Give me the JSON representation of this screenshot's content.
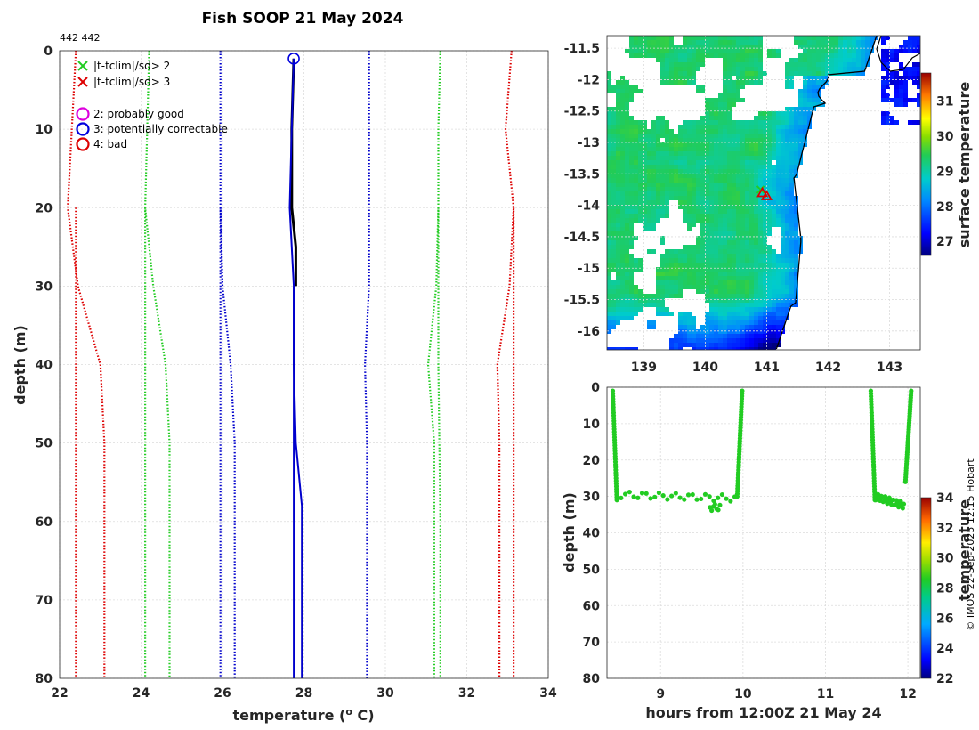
{
  "figure": {
    "title": "Fish SOOP 21 May 2024",
    "corner_label": "442 442",
    "copyright": "© IMOS 22-Sep-2025 12:15 Hobart"
  },
  "chart_data": [
    {
      "id": "profile",
      "type": "line",
      "xlabel": "temperature (",
      "xlabel_sup": "o",
      "xlabel_suffix": " C)",
      "ylabel": "depth (m)",
      "xlim": [
        22,
        34
      ],
      "ylim": [
        80,
        0
      ],
      "xticks": [
        22,
        24,
        26,
        28,
        30,
        32,
        34
      ],
      "yticks": [
        0,
        10,
        20,
        30,
        40,
        50,
        60,
        70,
        80
      ],
      "grid": true,
      "legend": {
        "placement": "top-left",
        "entries": [
          {
            "marker": "x",
            "color": "#22cc22",
            "label": "|t-tclim|/sd> 2"
          },
          {
            "marker": "x",
            "color": "#dd0000",
            "label": "|t-tclim|/sd> 3"
          },
          {
            "marker": "o",
            "color": "#dd00dd",
            "label": "2: probably good"
          },
          {
            "marker": "o",
            "color": "#0000dd",
            "label": "3: potentially correctable"
          },
          {
            "marker": "o",
            "color": "#dd0000",
            "label": "4: bad"
          }
        ]
      },
      "series": [
        {
          "name": "clim -3sd",
          "color": "#dd0000",
          "style": "dotted",
          "points": [
            [
              22.4,
              0
            ],
            [
              22.3,
              10
            ],
            [
              22.2,
              20
            ],
            [
              22.45,
              30
            ],
            [
              23.0,
              40
            ],
            [
              23.1,
              50
            ],
            [
              23.1,
              60
            ],
            [
              23.1,
              70
            ],
            [
              23.1,
              80
            ]
          ]
        },
        {
          "name": "clim -3sd (deep)",
          "color": "#dd0000",
          "style": "dotted",
          "points": [
            [
              22.4,
              20
            ],
            [
              22.4,
              40
            ],
            [
              22.4,
              60
            ],
            [
              22.4,
              80
            ]
          ]
        },
        {
          "name": "clim -2sd",
          "color": "#22cc22",
          "style": "dotted",
          "points": [
            [
              24.2,
              0
            ],
            [
              24.15,
              10
            ],
            [
              24.1,
              20
            ],
            [
              24.3,
              30
            ],
            [
              24.6,
              40
            ],
            [
              24.7,
              50
            ],
            [
              24.7,
              60
            ],
            [
              24.7,
              70
            ],
            [
              24.7,
              80
            ]
          ]
        },
        {
          "name": "clim -2sd (deep)",
          "color": "#22cc22",
          "style": "dotted",
          "points": [
            [
              24.1,
              20
            ],
            [
              24.1,
              40
            ],
            [
              24.1,
              60
            ],
            [
              24.1,
              80
            ]
          ]
        },
        {
          "name": "clim -1sd",
          "color": "#0000cc",
          "style": "dotted",
          "points": [
            [
              25.95,
              0
            ],
            [
              25.95,
              10
            ],
            [
              25.95,
              20
            ],
            [
              26.0,
              30
            ],
            [
              26.2,
              40
            ],
            [
              26.3,
              50
            ],
            [
              26.3,
              60
            ],
            [
              26.3,
              70
            ],
            [
              26.3,
              80
            ]
          ]
        },
        {
          "name": "clim -1sd (deep)",
          "color": "#0000cc",
          "style": "dotted",
          "points": [
            [
              25.95,
              20
            ],
            [
              25.95,
              40
            ],
            [
              25.95,
              60
            ],
            [
              25.95,
              80
            ]
          ]
        },
        {
          "name": "clim +1sd",
          "color": "#0000cc",
          "style": "dotted",
          "points": [
            [
              29.6,
              0
            ],
            [
              29.6,
              10
            ],
            [
              29.6,
              20
            ],
            [
              29.6,
              30
            ],
            [
              29.5,
              40
            ],
            [
              29.55,
              50
            ],
            [
              29.55,
              60
            ],
            [
              29.55,
              70
            ],
            [
              29.55,
              80
            ]
          ]
        },
        {
          "name": "clim +2sd",
          "color": "#22cc22",
          "style": "dotted",
          "points": [
            [
              31.35,
              0
            ],
            [
              31.3,
              10
            ],
            [
              31.3,
              20
            ],
            [
              31.25,
              30
            ],
            [
              31.05,
              40
            ],
            [
              31.2,
              50
            ],
            [
              31.2,
              60
            ],
            [
              31.2,
              70
            ],
            [
              31.2,
              80
            ]
          ]
        },
        {
          "name": "clim +2sd (deep)",
          "color": "#22cc22",
          "style": "dotted",
          "points": [
            [
              31.3,
              20
            ],
            [
              31.3,
              40
            ],
            [
              31.35,
              60
            ],
            [
              31.35,
              80
            ]
          ]
        },
        {
          "name": "clim +3sd",
          "color": "#dd0000",
          "style": "dotted",
          "points": [
            [
              33.1,
              0
            ],
            [
              32.95,
              10
            ],
            [
              33.15,
              20
            ],
            [
              33.05,
              30
            ],
            [
              32.75,
              40
            ],
            [
              32.8,
              50
            ],
            [
              32.8,
              60
            ],
            [
              32.8,
              70
            ],
            [
              32.8,
              80
            ]
          ]
        },
        {
          "name": "clim +3sd (deep)",
          "color": "#dd0000",
          "style": "dotted",
          "points": [
            [
              33.15,
              20
            ],
            [
              33.15,
              40
            ],
            [
              33.15,
              60
            ],
            [
              33.15,
              80
            ]
          ]
        },
        {
          "name": "profile raw",
          "color": "#000000",
          "style": "solid",
          "width": 3,
          "points": [
            [
              27.75,
              1
            ],
            [
              27.7,
              10
            ],
            [
              27.7,
              20
            ],
            [
              27.8,
              25
            ],
            [
              27.8,
              30
            ]
          ]
        },
        {
          "name": "profile QC",
          "color": "#0000cc",
          "style": "solid",
          "width": 2,
          "points": [
            [
              27.75,
              1
            ],
            [
              27.7,
              10
            ],
            [
              27.65,
              20
            ],
            [
              27.75,
              30
            ],
            [
              27.75,
              40
            ],
            [
              27.8,
              50
            ],
            [
              27.95,
              58
            ],
            [
              27.95,
              80
            ]
          ]
        },
        {
          "name": "profile QC 2",
          "color": "#0000cc",
          "style": "solid",
          "width": 2,
          "points": [
            [
              27.75,
              30
            ],
            [
              27.75,
              40
            ],
            [
              27.75,
              60
            ],
            [
              27.75,
              80
            ]
          ]
        }
      ],
      "flag_points": [
        {
          "x": 27.75,
          "y": 1,
          "marker": "o",
          "color": "#0000dd"
        }
      ]
    },
    {
      "id": "map",
      "type": "heatmap",
      "xlim": [
        138.4,
        143.5
      ],
      "ylim": [
        -16.3,
        -11.3
      ],
      "xticks": [
        139,
        140,
        141,
        142,
        143
      ],
      "yticks": [
        -11.5,
        -12,
        -12.5,
        -13,
        -13.5,
        -14,
        -14.5,
        -15,
        -15.5,
        -16
      ],
      "colorbar_label": "surface temperature",
      "colorbar_ticks": [
        27,
        28,
        29,
        30,
        31
      ],
      "colorbar_range": [
        26.6,
        31.8
      ],
      "markers": [
        {
          "lon": 140.9,
          "lat": -13.75,
          "marker": "x",
          "color": "#22cc22"
        },
        {
          "lon": 140.93,
          "lat": -13.8,
          "marker": "triangle",
          "color": "#dd0000"
        },
        {
          "lon": 141.0,
          "lat": -13.85,
          "marker": "triangle",
          "color": "#dd0000"
        }
      ]
    },
    {
      "id": "time",
      "type": "scatter",
      "xlabel": "hours from 12:00Z 21 May 24",
      "ylabel": "depth (m)",
      "xlim": [
        8.35,
        12.15
      ],
      "ylim": [
        80,
        0
      ],
      "xticks": [
        9,
        10,
        11,
        12
      ],
      "yticks": [
        0,
        10,
        20,
        30,
        40,
        50,
        60,
        70,
        80
      ],
      "colorbar_label": "temperature",
      "colorbar_ticks": [
        22,
        24,
        26,
        28,
        30,
        32,
        34
      ],
      "colorbar_range": [
        22,
        34
      ],
      "marker_color": "#22cc22",
      "segments": [
        {
          "t": [
            8.42,
            8.47
          ],
          "d": [
            1,
            31
          ],
          "kind": "down"
        },
        {
          "t": [
            8.47,
            9.9
          ],
          "d": [
            29.5,
            30.5
          ],
          "kind": "bottom"
        },
        {
          "t": [
            9.6,
            9.72
          ],
          "d": [
            33,
            33
          ],
          "kind": "bottom2"
        },
        {
          "t": [
            9.93,
            9.99
          ],
          "d": [
            30,
            1
          ],
          "kind": "up"
        },
        {
          "t": [
            11.55,
            11.6
          ],
          "d": [
            1,
            31
          ],
          "kind": "down"
        },
        {
          "t": [
            11.6,
            11.95
          ],
          "d": [
            30,
            32.5
          ],
          "kind": "bottom"
        },
        {
          "t": [
            11.97,
            12.04
          ],
          "d": [
            26,
            1
          ],
          "kind": "up"
        }
      ]
    }
  ]
}
